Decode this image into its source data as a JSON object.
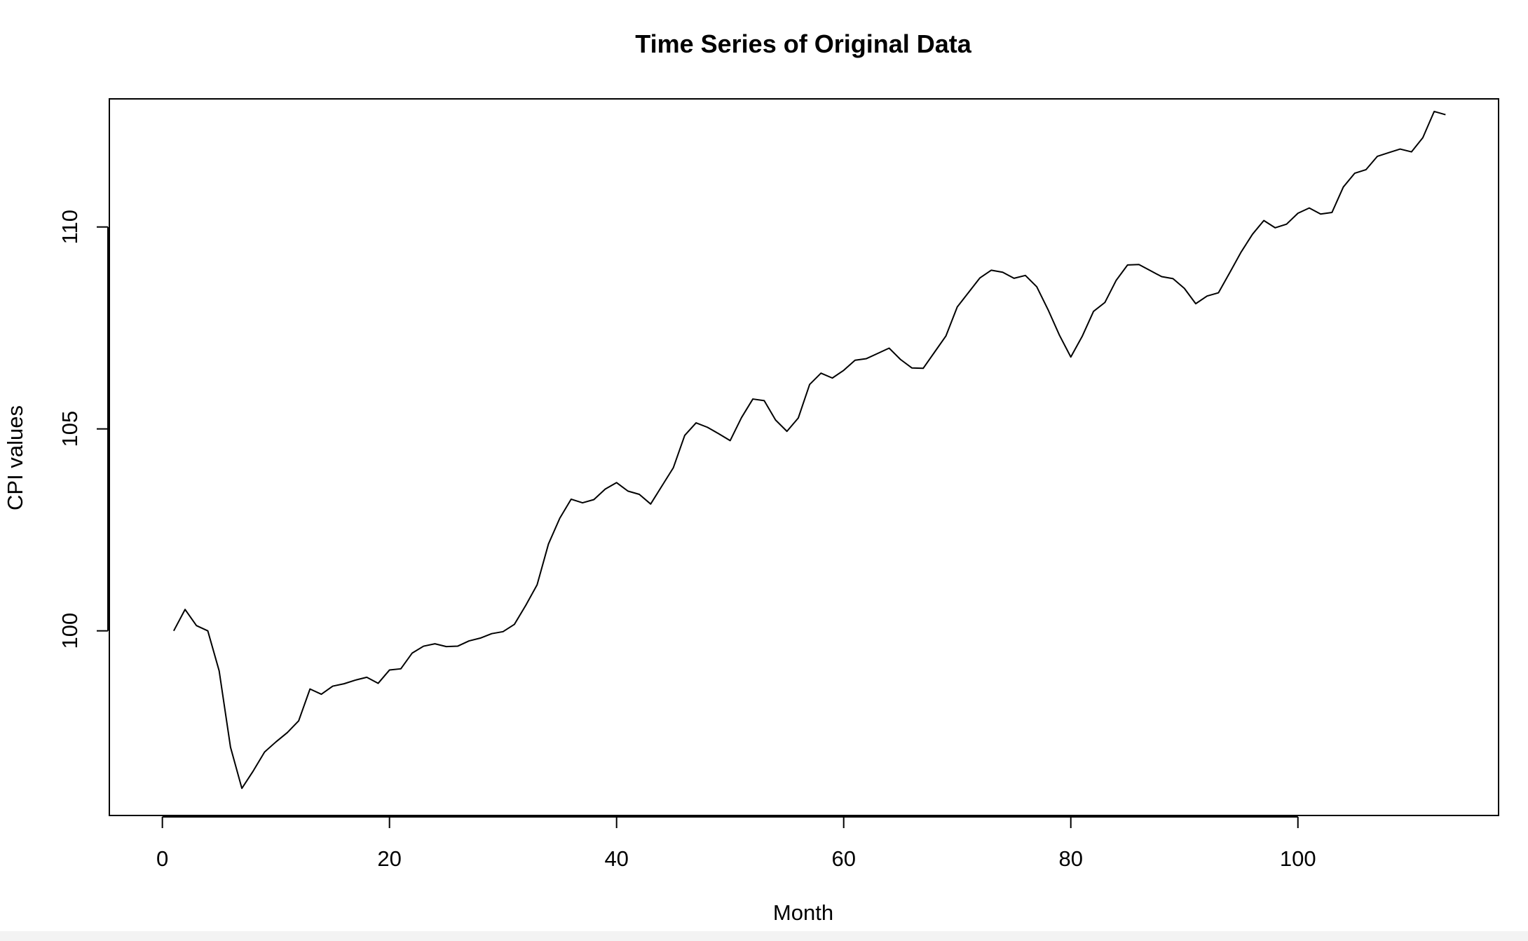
{
  "chart_data": {
    "type": "line",
    "title": "Time Series of Original Data",
    "xlabel": "Month",
    "ylabel": "CPI values",
    "xlim": [
      -4.67,
      117.67
    ],
    "ylim": [
      95.428,
      113.172
    ],
    "x_ticks": [
      0,
      20,
      40,
      60,
      80,
      100
    ],
    "y_ticks": [
      100,
      105,
      110
    ],
    "x_tick_labels": [
      "0",
      "20",
      "40",
      "60",
      "80",
      "100"
    ],
    "y_tick_labels": [
      "100",
      "105",
      "110"
    ],
    "grid": false,
    "legend": "none",
    "line_color": "#000000",
    "series": [
      {
        "x": [
          1,
          2,
          3,
          4,
          5,
          6,
          7,
          8,
          9,
          10,
          11,
          12,
          13,
          14,
          15,
          16,
          17,
          18,
          19,
          20,
          21,
          22,
          23,
          24,
          25,
          26,
          27,
          28,
          29,
          30,
          31,
          32,
          33,
          34,
          35,
          36,
          37,
          38,
          39,
          40,
          41,
          42,
          43,
          44,
          45,
          46,
          47,
          48,
          49,
          50,
          51,
          52,
          53,
          54,
          55,
          56,
          57,
          58,
          59,
          60,
          61,
          62,
          63,
          64,
          65,
          66,
          67,
          68,
          69,
          70,
          71,
          72,
          73,
          74,
          75,
          76,
          77,
          78,
          79,
          80,
          81,
          82,
          83,
          84,
          85,
          86,
          87,
          88,
          89,
          90,
          91,
          92,
          93,
          94,
          95,
          96,
          97,
          98,
          99,
          100,
          101,
          102,
          103,
          104,
          105,
          106,
          107,
          108,
          109,
          110,
          111,
          112,
          113
        ],
        "values": [
          100.0,
          100.53,
          100.13,
          100.0,
          99.01,
          97.12,
          96.1,
          96.53,
          97.0,
          97.25,
          97.48,
          97.77,
          98.56,
          98.43,
          98.63,
          98.69,
          98.78,
          98.85,
          98.7,
          99.03,
          99.06,
          99.45,
          99.62,
          99.68,
          99.61,
          99.62,
          99.75,
          99.82,
          99.93,
          99.98,
          100.16,
          100.63,
          101.14,
          102.15,
          102.79,
          103.26,
          103.17,
          103.25,
          103.51,
          103.67,
          103.46,
          103.38,
          103.14,
          103.59,
          104.04,
          104.84,
          105.15,
          105.04,
          104.88,
          104.71,
          105.28,
          105.74,
          105.7,
          105.22,
          104.94,
          105.27,
          106.1,
          106.38,
          106.26,
          106.45,
          106.7,
          106.74,
          106.87,
          107.0,
          106.72,
          106.51,
          106.5,
          106.9,
          107.3,
          108.02,
          108.38,
          108.74,
          108.93,
          108.88,
          108.73,
          108.8,
          108.52,
          107.95,
          107.32,
          106.78,
          107.29,
          107.91,
          108.13,
          108.68,
          109.06,
          109.07,
          108.92,
          108.77,
          108.72,
          108.48,
          108.1,
          108.29,
          108.37,
          108.87,
          109.38,
          109.82,
          110.16,
          109.98,
          110.07,
          110.34,
          110.47,
          110.32,
          110.36,
          110.99,
          111.33,
          111.42,
          111.75,
          111.84,
          111.93,
          111.86,
          112.21,
          112.86,
          112.78
        ]
      }
    ]
  }
}
